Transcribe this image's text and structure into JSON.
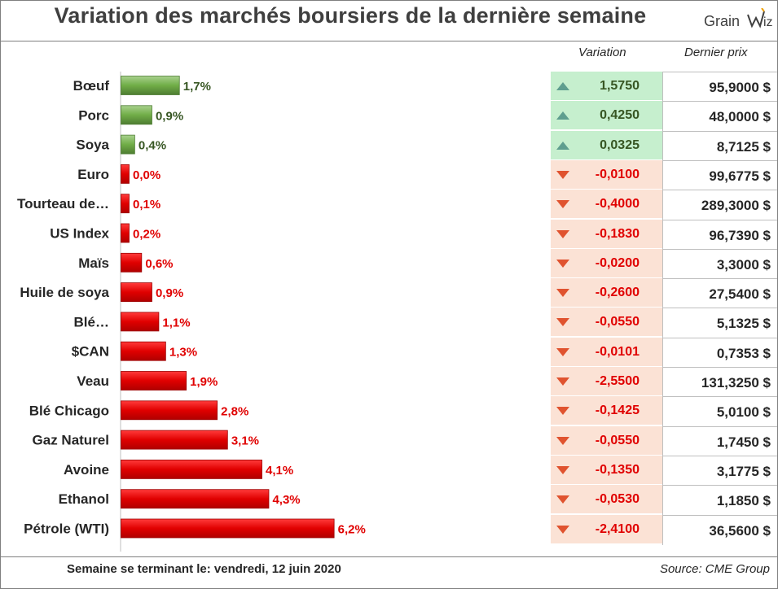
{
  "title": "Variation des marchés boursiers de la dernière semaine",
  "logo": {
    "text": "Grain",
    "mark": "viz-logo-icon"
  },
  "table": {
    "header_variation": "Variation",
    "header_price": "Dernier prix"
  },
  "colors": {
    "up_bar": "#70ad47",
    "down_bar": "#e00000",
    "up_text": "#375623",
    "down_text": "#e00000",
    "up_fill": "#c6efce",
    "down_fill": "#fbe2d5",
    "up_arrow": "#5f9e8f",
    "down_arrow": "#e0532f"
  },
  "chart_data": {
    "type": "bar",
    "orientation": "horizontal",
    "title": "Variation des marchés boursiers de la dernière semaine",
    "xlim": [
      0,
      6.5
    ],
    "categories": [
      "Bœuf",
      "Porc",
      "Soya",
      "Euro",
      "Tourteau de…",
      "US Index",
      "Maïs",
      "Huile de soya",
      "Blé…",
      "$CAN",
      "Veau",
      "Blé Chicago",
      "Gaz Naturel",
      "Avoine",
      "Ethanol",
      "Pétrole (WTI)"
    ],
    "values": [
      1.7,
      0.9,
      0.4,
      0.0,
      0.1,
      0.2,
      0.6,
      0.9,
      1.1,
      1.3,
      1.9,
      2.8,
      3.1,
      4.1,
      4.3,
      6.2
    ],
    "labels": [
      "1,7%",
      "0,9%",
      "0,4%",
      "0,0%",
      "0,1%",
      "0,2%",
      "0,6%",
      "0,9%",
      "1,1%",
      "1,3%",
      "1,9%",
      "2,8%",
      "3,1%",
      "4,1%",
      "4,3%",
      "6,2%"
    ],
    "direction": [
      "up",
      "up",
      "up",
      "down",
      "down",
      "down",
      "down",
      "down",
      "down",
      "down",
      "down",
      "down",
      "down",
      "down",
      "down",
      "down"
    ]
  },
  "rows": [
    {
      "variation": "1,5750",
      "price": "95,9000 $",
      "dir": "up"
    },
    {
      "variation": "0,4250",
      "price": "48,0000 $",
      "dir": "up"
    },
    {
      "variation": "0,0325",
      "price": "8,7125 $",
      "dir": "up"
    },
    {
      "variation": "-0,0100",
      "price": "99,6775 $",
      "dir": "down"
    },
    {
      "variation": "-0,4000",
      "price": "289,3000 $",
      "dir": "down"
    },
    {
      "variation": "-0,1830",
      "price": "96,7390 $",
      "dir": "down"
    },
    {
      "variation": "-0,0200",
      "price": "3,3000 $",
      "dir": "down"
    },
    {
      "variation": "-0,2600",
      "price": "27,5400 $",
      "dir": "down"
    },
    {
      "variation": "-0,0550",
      "price": "5,1325 $",
      "dir": "down"
    },
    {
      "variation": "-0,0101",
      "price": "0,7353 $",
      "dir": "down"
    },
    {
      "variation": "-2,5500",
      "price": "131,3250 $",
      "dir": "down"
    },
    {
      "variation": "-0,1425",
      "price": "5,0100 $",
      "dir": "down"
    },
    {
      "variation": "-0,0550",
      "price": "1,7450 $",
      "dir": "down"
    },
    {
      "variation": "-0,1350",
      "price": "3,1775 $",
      "dir": "down"
    },
    {
      "variation": "-0,0530",
      "price": "1,1850 $",
      "dir": "down"
    },
    {
      "variation": "-2,4100",
      "price": "36,5600 $",
      "dir": "down"
    }
  ],
  "footer": {
    "week_label": "Semaine se terminant le:  vendredi, 12 juin 2020",
    "source": "Source: CME Group"
  }
}
